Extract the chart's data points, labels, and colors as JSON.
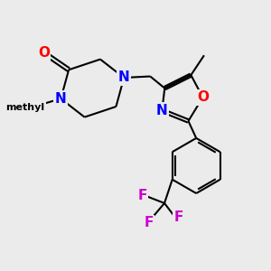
{
  "background_color": "#ebebeb",
  "bond_color": "black",
  "bond_width": 1.5,
  "atom_colors": {
    "O": "#ff0000",
    "N": "#0000ff",
    "F": "#cc00cc",
    "C": "black"
  },
  "font_size_atoms": 11,
  "font_size_methyl": 9
}
